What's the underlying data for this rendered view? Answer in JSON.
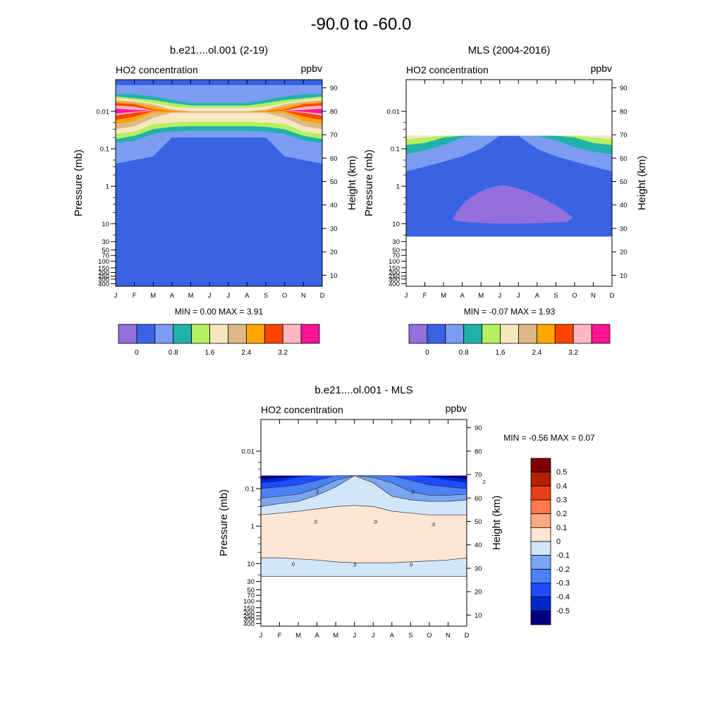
{
  "figure": {
    "title": "-90.0 to -60.0"
  },
  "chart_data": [
    {
      "type": "heatmap",
      "title": "b.e21....ol.001 (2-19)",
      "left_label": "HO2 concentration",
      "units": "ppbv",
      "xlabel": "",
      "ylabel": "Pressure (mb)",
      "y2label": "Height (km)",
      "x_ticks": [
        "J",
        "F",
        "M",
        "A",
        "M",
        "J",
        "J",
        "A",
        "S",
        "O",
        "N",
        "D"
      ],
      "y_ticks": [
        "0.01",
        "0.1",
        "1",
        "10",
        "30",
        "50",
        "70",
        "100",
        "150",
        "200",
        "250",
        "300",
        "400"
      ],
      "y2_ticks": [
        "90",
        "80",
        "70",
        "60",
        "50",
        "40",
        "30",
        "20",
        "10"
      ],
      "stats": "MIN =   0.00  MAX =   3.91",
      "colorbar": {
        "colors": [
          "#9370db",
          "#3a63e4",
          "#7b9cf0",
          "#20b2aa",
          "#b5f060",
          "#f5e8c0",
          "#deb887",
          "#ffa500",
          "#ff4500",
          "#ffb6c1",
          "#ff1493"
        ],
        "labels": [
          "0",
          "0.8",
          "1.6",
          "2.4",
          "3.2"
        ]
      }
    },
    {
      "type": "heatmap",
      "title": "MLS (2004-2016)",
      "left_label": "HO2 concentration",
      "units": "ppbv",
      "xlabel": "",
      "ylabel": "Pressure (mb)",
      "y2label": "Height (km)",
      "x_ticks": [
        "J",
        "F",
        "M",
        "A",
        "M",
        "J",
        "J",
        "A",
        "S",
        "O",
        "N",
        "D"
      ],
      "y_ticks": [
        "0.01",
        "0.1",
        "1",
        "10",
        "30",
        "50",
        "70",
        "100",
        "150",
        "200",
        "250",
        "300",
        "400"
      ],
      "y2_ticks": [
        "90",
        "80",
        "70",
        "60",
        "50",
        "40",
        "30",
        "20",
        "10"
      ],
      "stats": "MIN =  -0.07  MAX =   1.93",
      "colorbar": {
        "colors": [
          "#9370db",
          "#3a63e4",
          "#7b9cf0",
          "#20b2aa",
          "#b5f060",
          "#f5e8c0",
          "#deb887",
          "#ffa500",
          "#ff4500",
          "#ffb6c1",
          "#ff1493"
        ],
        "labels": [
          "0",
          "0.8",
          "1.6",
          "2.4",
          "3.2"
        ]
      }
    },
    {
      "type": "heatmap",
      "title": "b.e21....ol.001 - MLS",
      "left_label": "HO2 concentration",
      "units": "ppbv",
      "xlabel": "",
      "ylabel": "Pressure (mb)",
      "y2label": "Height (km)",
      "x_ticks": [
        "J",
        "F",
        "M",
        "A",
        "M",
        "J",
        "J",
        "A",
        "S",
        "O",
        "N",
        "D"
      ],
      "y_ticks": [
        "0.01",
        "0.1",
        "1",
        "10",
        "30",
        "50",
        "70",
        "100",
        "150",
        "200",
        "250",
        "300",
        "400"
      ],
      "y2_ticks": [
        "90",
        "80",
        "70",
        "60",
        "50",
        "40",
        "30",
        "20",
        "10"
      ],
      "stats": "MIN =  -0.56  MAX =   0.07",
      "contour_labels": [
        ".2",
        ".2",
        ".0",
        ".0",
        ".0",
        ".0",
        ".0",
        ".0",
        ".2"
      ],
      "colorbar": {
        "colors": [
          "#7f0000",
          "#b22200",
          "#e8401c",
          "#ff7a4a",
          "#ffa882",
          "#fde6d3",
          "#d2e6fa",
          "#7aa6f0",
          "#4a82f5",
          "#1e4cff",
          "#0028c8",
          "#000080"
        ],
        "labels": [
          "0.5",
          "0.4",
          "0.3",
          "0.2",
          "0.1",
          "0",
          "-0.1",
          "-0.2",
          "-0.3",
          "-0.4",
          "-0.5"
        ]
      }
    }
  ]
}
